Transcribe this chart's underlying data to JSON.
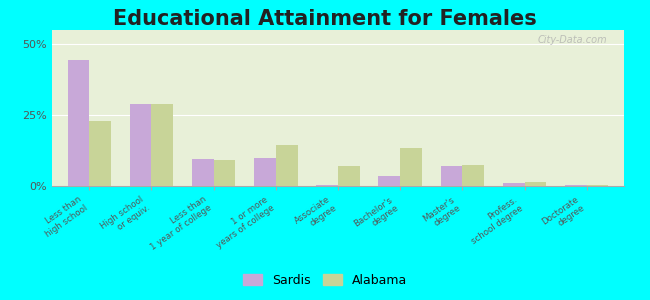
{
  "title": "Educational Attainment for Females",
  "categories": [
    "Less than\nhigh school",
    "High school\nor equiv.",
    "Less than\n1 year of college",
    "1 or more\nyears of college",
    "Associate\ndegree",
    "Bachelor's\ndegree",
    "Master's\ndegree",
    "Profess.\nschool degree",
    "Doctorate\ndegree"
  ],
  "sardis_values": [
    44.5,
    29.0,
    9.5,
    10.0,
    0.5,
    3.5,
    7.0,
    1.0,
    0.5
  ],
  "alabama_values": [
    23.0,
    29.0,
    9.0,
    14.5,
    7.0,
    13.5,
    7.5,
    1.5,
    0.5
  ],
  "sardis_color": "#c8a8d8",
  "alabama_color": "#c8d498",
  "background_color": "#e8f0d8",
  "outer_background": "#00ffff",
  "title_fontsize": 15,
  "ylim": [
    0,
    55
  ],
  "yticks": [
    0,
    25,
    50
  ],
  "ytick_labels": [
    "0%",
    "25%",
    "50%"
  ],
  "bar_width": 0.35,
  "legend_sardis": "Sardis",
  "legend_alabama": "Alabama"
}
